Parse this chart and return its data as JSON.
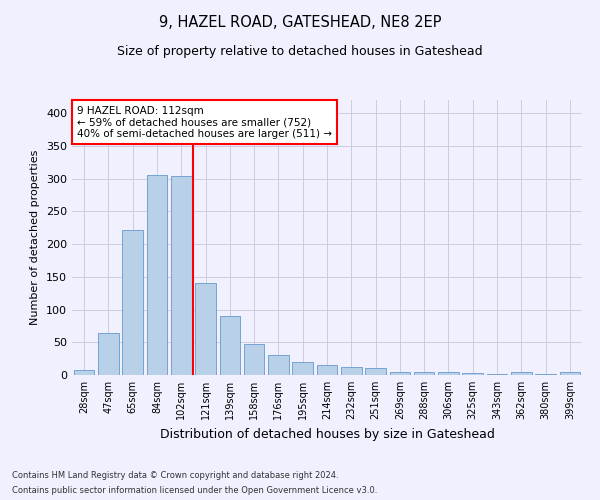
{
  "title": "9, HAZEL ROAD, GATESHEAD, NE8 2EP",
  "subtitle": "Size of property relative to detached houses in Gateshead",
  "xlabel": "Distribution of detached houses by size in Gateshead",
  "ylabel": "Number of detached properties",
  "categories": [
    "28sqm",
    "47sqm",
    "65sqm",
    "84sqm",
    "102sqm",
    "121sqm",
    "139sqm",
    "158sqm",
    "176sqm",
    "195sqm",
    "214sqm",
    "232sqm",
    "251sqm",
    "269sqm",
    "288sqm",
    "306sqm",
    "325sqm",
    "343sqm",
    "362sqm",
    "380sqm",
    "399sqm"
  ],
  "values": [
    8,
    64,
    222,
    306,
    304,
    140,
    90,
    47,
    30,
    20,
    15,
    12,
    10,
    4,
    5,
    4,
    3,
    2,
    4,
    2,
    4
  ],
  "bar_color": "#b8d0e8",
  "bar_edge_color": "#6699cc",
  "vline_x": 4.5,
  "vline_color": "red",
  "annotation_text": "9 HAZEL ROAD: 112sqm\n← 59% of detached houses are smaller (752)\n40% of semi-detached houses are larger (511) →",
  "annotation_box_color": "white",
  "annotation_box_edge": "red",
  "ylim": [
    0,
    420
  ],
  "yticks": [
    0,
    50,
    100,
    150,
    200,
    250,
    300,
    350,
    400
  ],
  "footer_line1": "Contains HM Land Registry data © Crown copyright and database right 2024.",
  "footer_line2": "Contains public sector information licensed under the Open Government Licence v3.0.",
  "bg_color": "#f0f0ff",
  "grid_color": "#ccccdd"
}
